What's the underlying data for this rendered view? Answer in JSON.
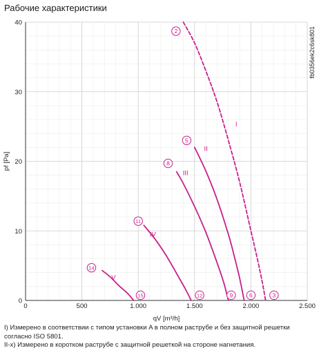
{
  "page_title": "Рабочие характеристики",
  "notes": [
    "I) Измерено в соответствии с типом установки A в полном раструбе и без защитной решетки согласно ISO 5801.",
    "II-x) Измерено в коротком раструбе с защитной решеткой на стороне нагнетания."
  ],
  "colors": {
    "curve": "#c81e8c",
    "grid": "#cfcfcf",
    "axis": "#333333"
  },
  "chart_data": {
    "type": "line",
    "title": "",
    "xlabel": "qV [m³/h]",
    "ylabel": "pf [Pa]",
    "xlim": [
      0,
      2500
    ],
    "ylim": [
      0,
      40
    ],
    "x_ticks": [
      0,
      500,
      1000,
      1500,
      2000,
      2500
    ],
    "x_tick_labels": [
      "0",
      "500",
      "1.000",
      "1.500",
      "2.000",
      "2.500"
    ],
    "y_ticks": [
      0,
      10,
      20,
      30,
      40
    ],
    "y_tick_labels": [
      "0",
      "10",
      "20",
      "30",
      "40"
    ],
    "minor_x_step": 100,
    "minor_y_step": 2,
    "grid": true,
    "side_label": "fb0356ek2c6sk801",
    "series": [
      {
        "name": "I",
        "dashed": true,
        "x": [
          1400,
          1500,
          1600,
          1700,
          1800,
          1900,
          2000,
          2050,
          2100,
          2130
        ],
        "y": [
          40,
          37,
          33,
          28.5,
          23,
          17,
          10,
          6.5,
          2.7,
          0
        ]
      },
      {
        "name": "II",
        "dashed": false,
        "x": [
          1500,
          1600,
          1700,
          1800,
          1850,
          1900,
          1940
        ],
        "y": [
          22,
          18.6,
          14.5,
          9.5,
          6.5,
          3.2,
          0
        ]
      },
      {
        "name": "III",
        "dashed": false,
        "x": [
          1340,
          1400,
          1500,
          1600,
          1700,
          1760,
          1800
        ],
        "y": [
          18.5,
          16.8,
          13.5,
          9.8,
          5.4,
          2.5,
          0
        ]
      },
      {
        "name": "IV",
        "dashed": false,
        "x": [
          1050,
          1150,
          1250,
          1350,
          1420,
          1470
        ],
        "y": [
          10.8,
          8.8,
          6.4,
          3.6,
          1.6,
          0
        ]
      },
      {
        "name": "V",
        "dashed": false,
        "x": [
          680,
          750,
          830,
          900,
          960
        ],
        "y": [
          4.3,
          3.4,
          2.1,
          1.1,
          0
        ]
      }
    ],
    "series_labels": [
      {
        "text": "I",
        "x": 1870,
        "y": 25
      },
      {
        "text": "II",
        "x": 1600,
        "y": 21.5
      },
      {
        "text": "III",
        "x": 1420,
        "y": 18
      },
      {
        "text": "IV",
        "x": 1130,
        "y": 9.2
      },
      {
        "text": "V",
        "x": 780,
        "y": 3
      }
    ],
    "point_markers": [
      {
        "text": "2",
        "x": 1335,
        "y": 38.7
      },
      {
        "text": "5",
        "x": 1430,
        "y": 23
      },
      {
        "text": "8",
        "x": 1265,
        "y": 19.7
      },
      {
        "text": "11",
        "x": 1000,
        "y": 11.4
      },
      {
        "text": "14",
        "x": 585,
        "y": 4.7
      },
      {
        "text": "15",
        "x": 1020,
        "y": 0.75
      },
      {
        "text": "12",
        "x": 1545,
        "y": 0.75
      },
      {
        "text": "9",
        "x": 1825,
        "y": 0.75
      },
      {
        "text": "6",
        "x": 2000,
        "y": 0.75
      },
      {
        "text": "3",
        "x": 2205,
        "y": 0.75
      }
    ]
  }
}
